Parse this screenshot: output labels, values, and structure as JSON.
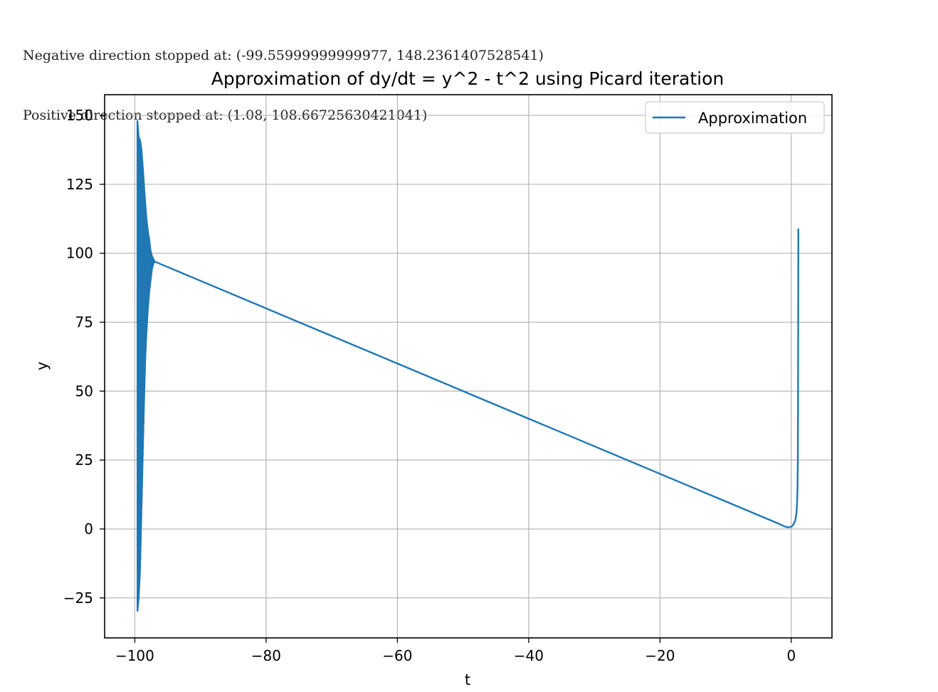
{
  "console": {
    "lines": [
      "Negative direction stopped at: (-99.55999999999977, 148.2361407528541)",
      "Positive direction stopped at: (1.08, 108.66725630421041)"
    ]
  },
  "chart_data": {
    "type": "line",
    "title": "Approximation of dy/dt = y^2 - t^2 using Picard iteration",
    "xlabel": "t",
    "ylabel": "y",
    "xlim": [
      -104.6,
      6.2
    ],
    "ylim": [
      -39.5,
      157.5
    ],
    "xticks": [
      -100,
      -80,
      -60,
      -40,
      -20,
      0
    ],
    "xtick_labels": [
      "−100",
      "−80",
      "−60",
      "−40",
      "−20",
      "0"
    ],
    "yticks": [
      -25,
      0,
      25,
      50,
      75,
      100,
      125,
      150
    ],
    "ytick_labels": [
      "−25",
      "0",
      "25",
      "50",
      "75",
      "100",
      "125",
      "150"
    ],
    "grid": true,
    "legend": "upper right",
    "colors": {
      "series": "#1f77b4",
      "grid": "#b0b0b0",
      "axes": "#000000"
    },
    "series": [
      {
        "name": "Approximation",
        "main_path": {
          "x": [
            -97.0,
            -95.0,
            -90.0,
            -80.0,
            -70.0,
            -60.0,
            -50.0,
            -40.0,
            -30.0,
            -20.0,
            -10.0,
            -5.0,
            -2.0,
            -1.0,
            -0.5,
            0.0,
            0.3,
            0.6,
            0.8,
            0.9,
            0.95,
            1.0,
            1.03,
            1.06,
            1.08
          ],
          "y": [
            97.0,
            95.0,
            90.0,
            80.0,
            70.0,
            60.0,
            50.0,
            40.0,
            30.0,
            20.0,
            10.0,
            5.0,
            2.0,
            0.9,
            0.6,
            0.8,
            1.5,
            3.0,
            6.0,
            10.0,
            15.0,
            25.0,
            45.0,
            75.0,
            108.67
          ]
        },
        "oscillation_envelope": {
          "t": [
            -99.6,
            -99.4,
            -99.2,
            -99.0,
            -98.8,
            -98.6,
            -98.4,
            -98.2,
            -98.0,
            -97.8,
            -97.6,
            -97.4,
            -97.2,
            -97.0
          ],
          "y_upper": [
            148.2,
            142.0,
            141.0,
            138.0,
            132.0,
            125.0,
            118.0,
            112.0,
            108.0,
            105.0,
            101.0,
            99.0,
            98.0,
            97.0
          ],
          "y_lower": [
            -30.0,
            -25.0,
            -15.0,
            5.0,
            25.0,
            45.0,
            62.0,
            72.0,
            80.0,
            86.0,
            90.0,
            94.0,
            96.0,
            97.0
          ]
        }
      }
    ]
  }
}
